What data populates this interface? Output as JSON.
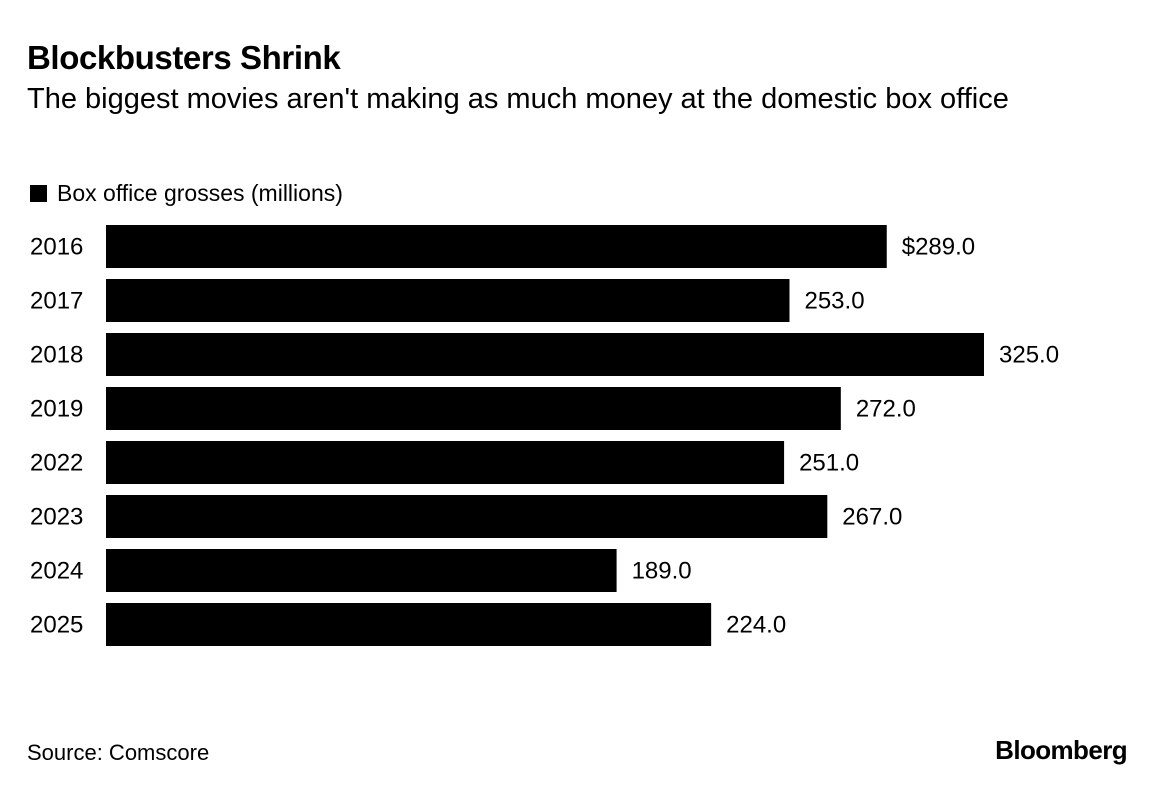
{
  "title": "Blockbusters Shrink",
  "subtitle": "The biggest movies aren't making as much money at the domestic box office",
  "source": "Source: Comscore",
  "logo": "Bloomberg",
  "colors": {
    "bar": "#000000",
    "text": "#000000",
    "background": "#ffffff"
  },
  "chart_data": {
    "type": "bar",
    "orientation": "horizontal",
    "categories": [
      "2016",
      "2017",
      "2018",
      "2019",
      "2022",
      "2023",
      "2024",
      "2025"
    ],
    "series": [
      {
        "name": "Box office grosses (millions)",
        "values": [
          289.0,
          253.0,
          325.0,
          272.0,
          251.0,
          267.0,
          189.0,
          224.0
        ]
      }
    ],
    "value_labels": [
      "$289.0",
      "253.0",
      "325.0",
      "272.0",
      "251.0",
      "267.0",
      "189.0",
      "224.0"
    ],
    "xlim": [
      0,
      325
    ],
    "grid": false,
    "legend": "top-left"
  }
}
